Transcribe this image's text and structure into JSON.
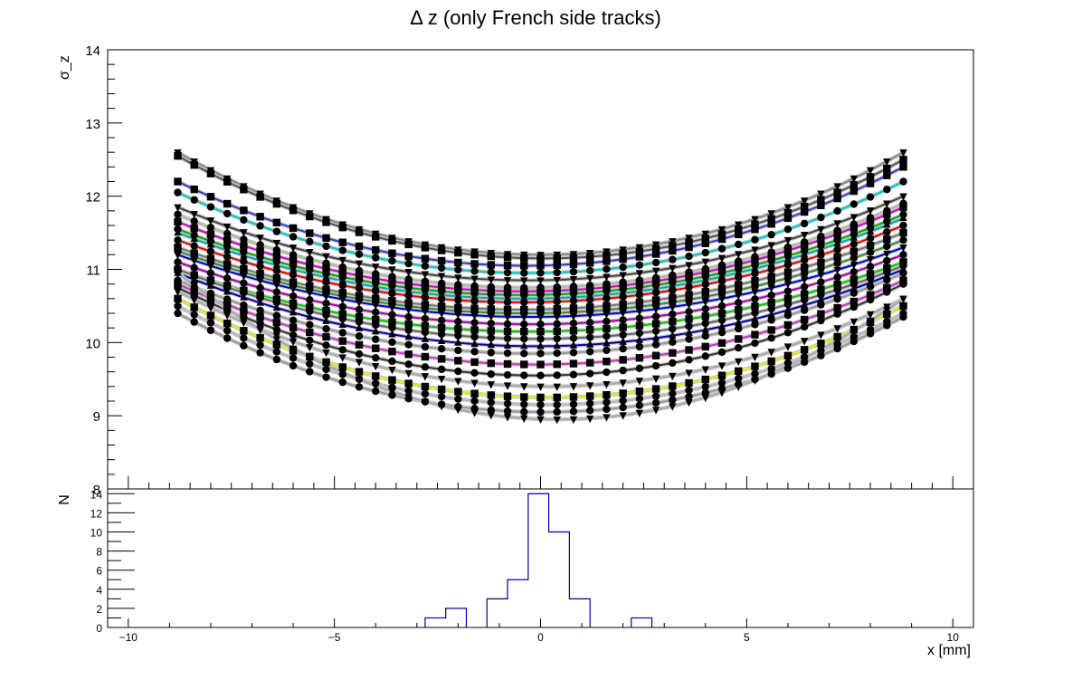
{
  "chart_data": [
    {
      "type": "scatter",
      "title": "Δ z (only French side tracks)",
      "xlabel": "",
      "ylabel": "σ_z",
      "xlim": [
        -10.5,
        10.5
      ],
      "ylim": [
        8,
        14
      ],
      "y_ticks": [
        "8",
        "9",
        "10",
        "11",
        "12",
        "13",
        "14"
      ],
      "grid": false,
      "x_points": [
        -8.8,
        -8.4,
        -8.0,
        -7.6,
        -7.2,
        -6.8,
        -6.4,
        -6.0,
        -5.6,
        -5.2,
        -4.8,
        -4.4,
        -4.0,
        -3.6,
        -3.2,
        -2.8,
        -2.4,
        -2.0,
        -1.6,
        -1.2,
        -0.8,
        -0.4,
        0.0,
        0.4,
        0.8,
        1.2,
        1.6,
        2.0,
        2.4,
        2.8,
        3.2,
        3.6,
        4.0,
        4.4,
        4.8,
        5.2,
        5.6,
        6.0,
        6.4,
        6.8,
        7.2,
        7.6,
        8.0,
        8.4,
        8.8
      ],
      "series": [
        {
          "left": 12.6,
          "min": 11.2,
          "right": 12.6,
          "color": "#888888",
          "marker": "triangle-down"
        },
        {
          "left": 12.55,
          "min": 11.15,
          "right": 12.5,
          "color": "#555555",
          "marker": "square"
        },
        {
          "left": 12.2,
          "min": 11.05,
          "right": 12.4,
          "color": "#3a3acc",
          "marker": "square"
        },
        {
          "left": 12.05,
          "min": 10.95,
          "right": 12.2,
          "color": "#00cccc",
          "marker": "circle"
        },
        {
          "left": 11.85,
          "min": 10.85,
          "right": 12.0,
          "color": "#444444",
          "marker": "triangle-down"
        },
        {
          "left": 11.75,
          "min": 10.75,
          "right": 11.9,
          "color": "#b8b8a0",
          "marker": "circle"
        },
        {
          "left": 11.65,
          "min": 10.7,
          "right": 11.85,
          "color": "#cc00cc",
          "marker": "square"
        },
        {
          "left": 11.55,
          "min": 10.65,
          "right": 11.75,
          "color": "#00aa00",
          "marker": "circle"
        },
        {
          "left": 11.5,
          "min": 10.6,
          "right": 11.7,
          "color": "#00aaaa",
          "marker": "triangle-up"
        },
        {
          "left": 11.4,
          "min": 10.55,
          "right": 11.6,
          "color": "#ee0000",
          "marker": "circle"
        },
        {
          "left": 11.3,
          "min": 10.45,
          "right": 11.5,
          "color": "#777777",
          "marker": "square"
        },
        {
          "left": 11.25,
          "min": 10.4,
          "right": 11.4,
          "color": "#3a8a3a",
          "marker": "circle"
        },
        {
          "left": 11.2,
          "min": 10.35,
          "right": 11.3,
          "color": "#0000cc",
          "marker": "triangle-down"
        },
        {
          "left": 11.1,
          "min": 10.25,
          "right": 11.2,
          "color": "#aa00aa",
          "marker": "circle"
        },
        {
          "left": 11.0,
          "min": 10.15,
          "right": 11.1,
          "color": "#00cc00",
          "marker": "square"
        },
        {
          "left": 11.0,
          "min": 10.05,
          "right": 11.05,
          "color": "#666666",
          "marker": "circle"
        },
        {
          "left": 10.95,
          "min": 9.95,
          "right": 11.0,
          "color": "#0000aa",
          "marker": "triangle-up"
        },
        {
          "left": 10.85,
          "min": 9.85,
          "right": 10.95,
          "color": "#999999",
          "marker": "circle"
        },
        {
          "left": 10.8,
          "min": 9.7,
          "right": 10.85,
          "color": "#cc33cc",
          "marker": "square"
        },
        {
          "left": 10.75,
          "min": 9.55,
          "right": 10.8,
          "color": "#333333",
          "marker": "circle"
        },
        {
          "left": 10.7,
          "min": 9.4,
          "right": 10.6,
          "color": "#aaaaaa",
          "marker": "triangle-down"
        },
        {
          "left": 10.6,
          "min": 9.25,
          "right": 10.5,
          "color": "#eeee00",
          "marker": "square"
        },
        {
          "left": 10.5,
          "min": 9.15,
          "right": 10.4,
          "color": "#bbbbbb",
          "marker": "circle"
        },
        {
          "left": 10.4,
          "min": 9.05,
          "right": 10.35,
          "color": "#999999",
          "marker": "circle"
        },
        {
          "left": 10.95,
          "min": 8.95,
          "right": 10.6,
          "color": "#aaaaaa",
          "marker": "triangle-down"
        }
      ]
    },
    {
      "type": "bar",
      "title": "",
      "xlabel": "x [mm]",
      "ylabel": "N",
      "xlim": [
        -10.5,
        10.5
      ],
      "ylim": [
        0,
        14.5
      ],
      "x_ticks": [
        "−10",
        "−5",
        "0",
        "5",
        "10"
      ],
      "y_ticks": [
        "0",
        "2",
        "4",
        "6",
        "8",
        "10",
        "12",
        "14"
      ],
      "bin_width": 0.5,
      "color": "#000099",
      "bins": [
        {
          "x0": -2.8,
          "value": 1
        },
        {
          "x0": -2.3,
          "value": 2
        },
        {
          "x0": -1.3,
          "value": 3
        },
        {
          "x0": -0.8,
          "value": 5
        },
        {
          "x0": -0.3,
          "value": 14
        },
        {
          "x0": 0.2,
          "value": 10
        },
        {
          "x0": 0.7,
          "value": 3
        },
        {
          "x0": 2.2,
          "value": 1
        }
      ]
    }
  ]
}
